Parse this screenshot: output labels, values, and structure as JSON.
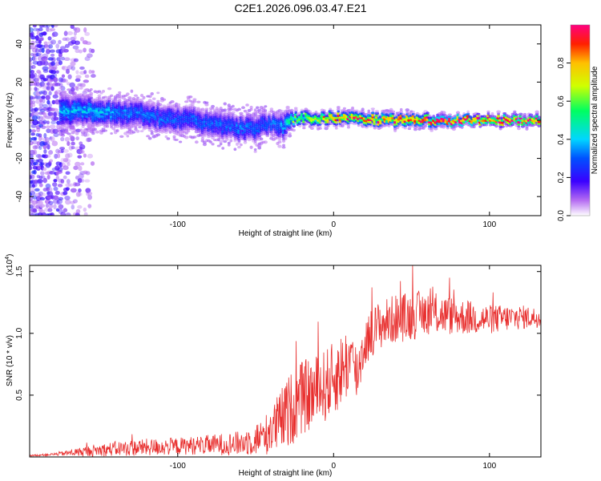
{
  "figure_title": "C2E1.2026.096.03.47.E21",
  "chart_data": [
    {
      "type": "heatmap",
      "name": "spectrogram",
      "xlabel": "Height of straight line (km)",
      "ylabel": "Frequency (Hz)",
      "xlim": [
        -195,
        133
      ],
      "ylim": [
        -50,
        50
      ],
      "xticks": [
        -100,
        0,
        100
      ],
      "yticks": [
        -40,
        -20,
        0,
        20,
        40
      ],
      "xtick_labels": [
        "-100",
        "0",
        "100"
      ],
      "ytick_labels": [
        "-40",
        "-20",
        "0",
        "20",
        "40"
      ],
      "colorbar": {
        "label": "Normalized spectral amplitude",
        "range": [
          0,
          1
        ],
        "ticks": [
          0.0,
          0.2,
          0.4,
          0.6,
          0.8
        ],
        "tick_labels": [
          "0.0",
          "0.2",
          "0.4",
          "0.6",
          "0.8"
        ]
      },
      "ridge": {
        "description": "spectral ridge center frequency vs height",
        "x": [
          -175,
          -150,
          -125,
          -100,
          -80,
          -60,
          -50,
          -40,
          -32,
          -25,
          0,
          50,
          100,
          133
        ],
        "center_hz": [
          4,
          5,
          3,
          1,
          -1,
          -4,
          -4,
          -2,
          -3,
          1,
          1,
          0,
          0,
          0
        ],
        "halfwidth_hz": [
          6,
          5,
          5,
          5,
          5,
          5,
          5,
          4,
          5,
          2,
          2,
          2,
          1.5,
          1.5
        ],
        "peak_amplitude": [
          0.35,
          0.35,
          0.3,
          0.28,
          0.28,
          0.3,
          0.28,
          0.3,
          0.35,
          0.6,
          0.8,
          0.9,
          0.95,
          0.95
        ]
      },
      "noise_region": {
        "x_range": [
          -195,
          -155
        ],
        "y_range": [
          -50,
          50
        ]
      }
    },
    {
      "type": "line",
      "name": "snr",
      "xlabel": "Height of straight line (km)",
      "ylabel": "SNR (10 * v/v)",
      "scale_label": "(x10",
      "scale_exponent": "4",
      "scale_suffix": ")",
      "xlim": [
        -195,
        133
      ],
      "ylim": [
        0,
        1.55
      ],
      "xticks": [
        -100,
        0,
        100
      ],
      "yticks": [
        0.5,
        1.0,
        1.5
      ],
      "xtick_labels": [
        "-100",
        "0",
        "100"
      ],
      "ytick_labels": [
        "0.5",
        "1.0",
        "1.5"
      ],
      "color": "#e8302f",
      "envelope": {
        "x": [
          -195,
          -180,
          -160,
          -140,
          -120,
          -100,
          -80,
          -60,
          -45,
          -35,
          -28,
          -20,
          -10,
          0,
          10,
          15,
          20,
          25,
          30,
          40,
          50,
          60,
          80,
          100,
          120,
          133
        ],
        "baseline": [
          0.01,
          0.02,
          0.04,
          0.06,
          0.07,
          0.08,
          0.09,
          0.1,
          0.15,
          0.25,
          0.35,
          0.45,
          0.5,
          0.6,
          0.75,
          0.65,
          0.9,
          1.0,
          1.05,
          1.1,
          1.12,
          1.15,
          1.12,
          1.1,
          1.12,
          1.12
        ],
        "amplitude": [
          0.005,
          0.01,
          0.04,
          0.06,
          0.07,
          0.07,
          0.08,
          0.1,
          0.15,
          0.25,
          0.3,
          0.3,
          0.3,
          0.3,
          0.3,
          0.25,
          0.2,
          0.2,
          0.2,
          0.2,
          0.2,
          0.18,
          0.15,
          0.12,
          0.1,
          0.08
        ]
      }
    }
  ]
}
